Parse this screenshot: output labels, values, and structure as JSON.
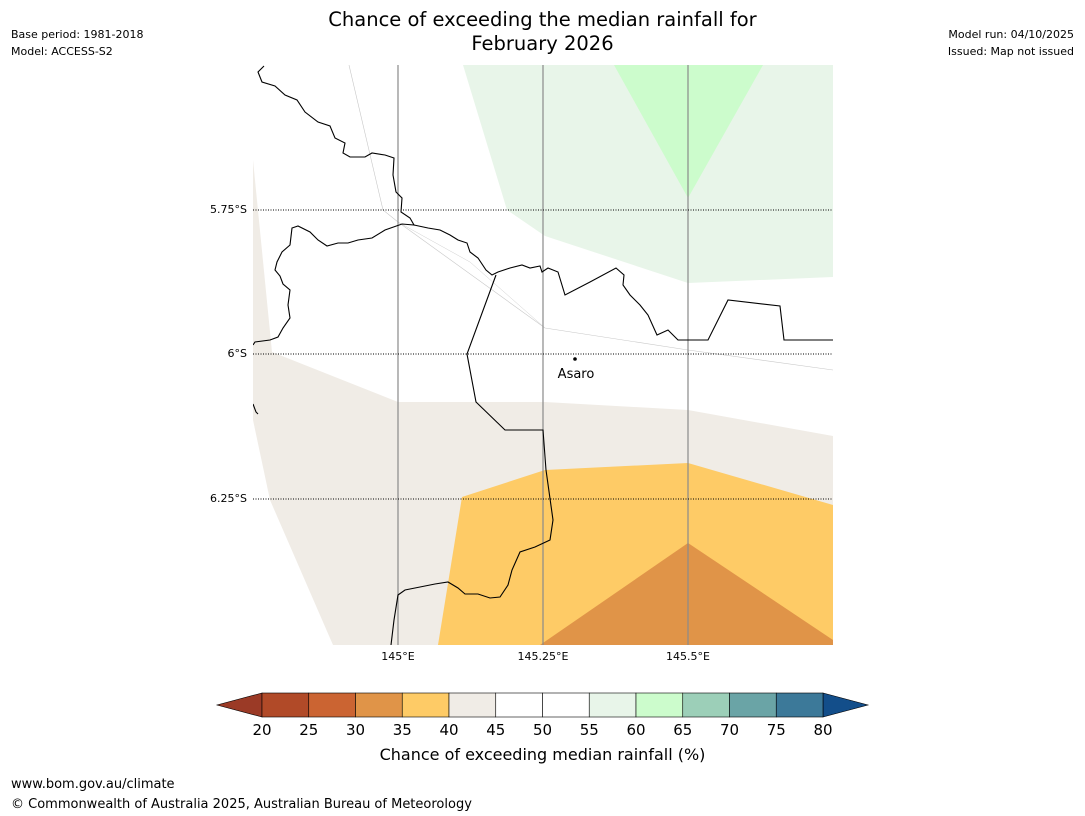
{
  "header": {
    "title_line1": "Chance of exceeding the median rainfall for",
    "title_line2": "February 2026",
    "base_period": "Base period: 1981-2018",
    "model": "Model: ACCESS-S2",
    "model_run": "Model run: 04/10/2025",
    "issued": "Issued: Map not issued"
  },
  "map": {
    "lat_labels": [
      "5.75°S",
      "6°S",
      "6.25°S"
    ],
    "lon_labels": [
      "145°E",
      "145.25°E",
      "145.5°E"
    ],
    "place": "Asaro"
  },
  "legend": {
    "title": "Chance of exceeding median rainfall (%)",
    "ticks": [
      "20",
      "25",
      "30",
      "35",
      "40",
      "45",
      "50",
      "55",
      "60",
      "65",
      "70",
      "75",
      "80"
    ],
    "colors": {
      "under": "#9b3a26",
      "bins": [
        "#b14a28",
        "#cb6432",
        "#e09448",
        "#fecb66",
        "#f0ece6",
        "#ffffff",
        "#ffffff",
        "#e8f5e9",
        "#ccfccc",
        "#9ccfb8",
        "#6aa4a6",
        "#3c7999"
      ],
      "over": "#134e8a"
    }
  },
  "footer": {
    "url": "www.bom.gov.au/climate",
    "copyright": "© Commonwealth of Australia 2025, Australian Bureau of Meteorology"
  }
}
